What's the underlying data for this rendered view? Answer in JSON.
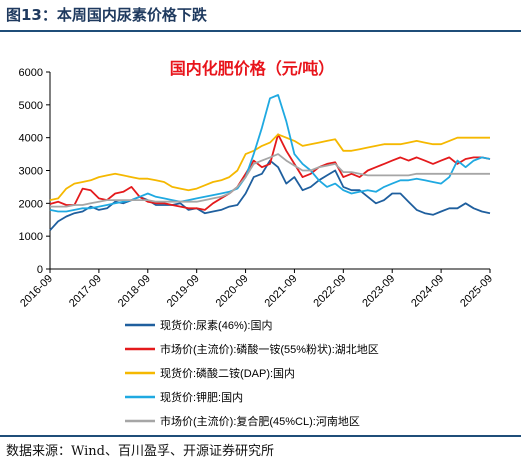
{
  "figure": {
    "title": "图13：本周国内尿素价格下跌",
    "source": "数据来源：Wind、百川盈孚、开源证券研究所"
  },
  "chart_data": {
    "type": "line",
    "title": "国内化肥价格（元/吨）",
    "title_color": "#e8141b",
    "ylim": [
      0,
      6000
    ],
    "yticks": [
      0,
      1000,
      2000,
      3000,
      4000,
      5000,
      6000
    ],
    "xticks": [
      "2016-09",
      "2017-09",
      "2018-09",
      "2019-09",
      "2020-09",
      "2021-09",
      "2022-09",
      "2023-09",
      "2024-09",
      "2025-09"
    ],
    "grid": false,
    "legend_position": "bottom",
    "series": [
      {
        "name": "现货价:尿素(46%):国内",
        "color": "#1f5f9e",
        "values": [
          1180,
          1450,
          1600,
          1700,
          1750,
          1900,
          1800,
          1850,
          2050,
          2000,
          2100,
          2200,
          2100,
          1950,
          1950,
          1950,
          2000,
          1800,
          1850,
          1700,
          1750,
          1800,
          1900,
          1950,
          2300,
          2800,
          2900,
          3300,
          3100,
          2600,
          2800,
          2400,
          2500,
          2700,
          2850,
          3000,
          2500,
          2400,
          2400,
          2200,
          2000,
          2100,
          2300,
          2300,
          2050,
          1800,
          1700,
          1650,
          1750,
          1850,
          1850,
          2000,
          1850,
          1750,
          1700
        ]
      },
      {
        "name": "市场价(主流价):磷酸一铵(55%粉状):湖北地区",
        "color": "#e41a1c",
        "values": [
          1980,
          2050,
          1950,
          1950,
          2450,
          2400,
          2150,
          2100,
          2300,
          2350,
          2500,
          2200,
          2050,
          2000,
          2000,
          1950,
          1900,
          1850,
          1850,
          1800,
          2000,
          2150,
          2300,
          2500,
          2900,
          3300,
          3100,
          3200,
          4100,
          3600,
          3200,
          2800,
          2900,
          3100,
          3200,
          3250,
          2800,
          2900,
          2800,
          3000,
          3100,
          3200,
          3300,
          3400,
          3300,
          3400,
          3300,
          3200,
          3300,
          3400,
          3200,
          3350,
          3400,
          3400,
          3350
        ]
      },
      {
        "name": "现货价:磷酸二铵(DAP):国内",
        "color": "#f5b800",
        "values": [
          2100,
          2150,
          2450,
          2600,
          2650,
          2700,
          2800,
          2850,
          2900,
          2850,
          2800,
          2750,
          2750,
          2700,
          2650,
          2500,
          2450,
          2400,
          2450,
          2550,
          2650,
          2700,
          2800,
          3000,
          3500,
          3600,
          3750,
          3850,
          4100,
          4000,
          3900,
          3750,
          3800,
          3850,
          3900,
          3950,
          3600,
          3600,
          3650,
          3700,
          3750,
          3800,
          3800,
          3800,
          3850,
          3900,
          3850,
          3800,
          3800,
          3900,
          4000,
          4000,
          4000,
          4000,
          4000
        ]
      },
      {
        "name": "现货价:钾肥:国内",
        "color": "#1fa9e1",
        "values": [
          1800,
          1750,
          1750,
          1800,
          1850,
          1850,
          1900,
          1950,
          2000,
          2050,
          2100,
          2200,
          2300,
          2200,
          2150,
          2100,
          2050,
          2100,
          2150,
          2200,
          2250,
          2300,
          2350,
          2450,
          2800,
          3500,
          4300,
          5200,
          5300,
          4500,
          3500,
          3200,
          3000,
          2700,
          2500,
          2600,
          2400,
          2300,
          2350,
          2400,
          2350,
          2500,
          2600,
          2700,
          2700,
          2750,
          2700,
          2650,
          2600,
          2800,
          3300,
          3100,
          3300,
          3400,
          3350
        ]
      },
      {
        "name": "市场价(主流价):复合肥(45%CL):河南地区",
        "color": "#a6a6a6",
        "values": [
          1900,
          1900,
          1900,
          1950,
          1950,
          2000,
          2050,
          2100,
          2100,
          2100,
          2100,
          2100,
          2100,
          2050,
          2050,
          2050,
          2050,
          2050,
          2050,
          2100,
          2150,
          2200,
          2300,
          2500,
          2800,
          3200,
          3300,
          3400,
          3500,
          3300,
          3150,
          3000,
          3000,
          3100,
          3150,
          3200,
          2950,
          2950,
          2900,
          2850,
          2850,
          2850,
          2850,
          2850,
          2850,
          2900,
          2900,
          2900,
          2900,
          2900,
          2900,
          2900,
          2900,
          2900,
          2900
        ]
      }
    ]
  }
}
